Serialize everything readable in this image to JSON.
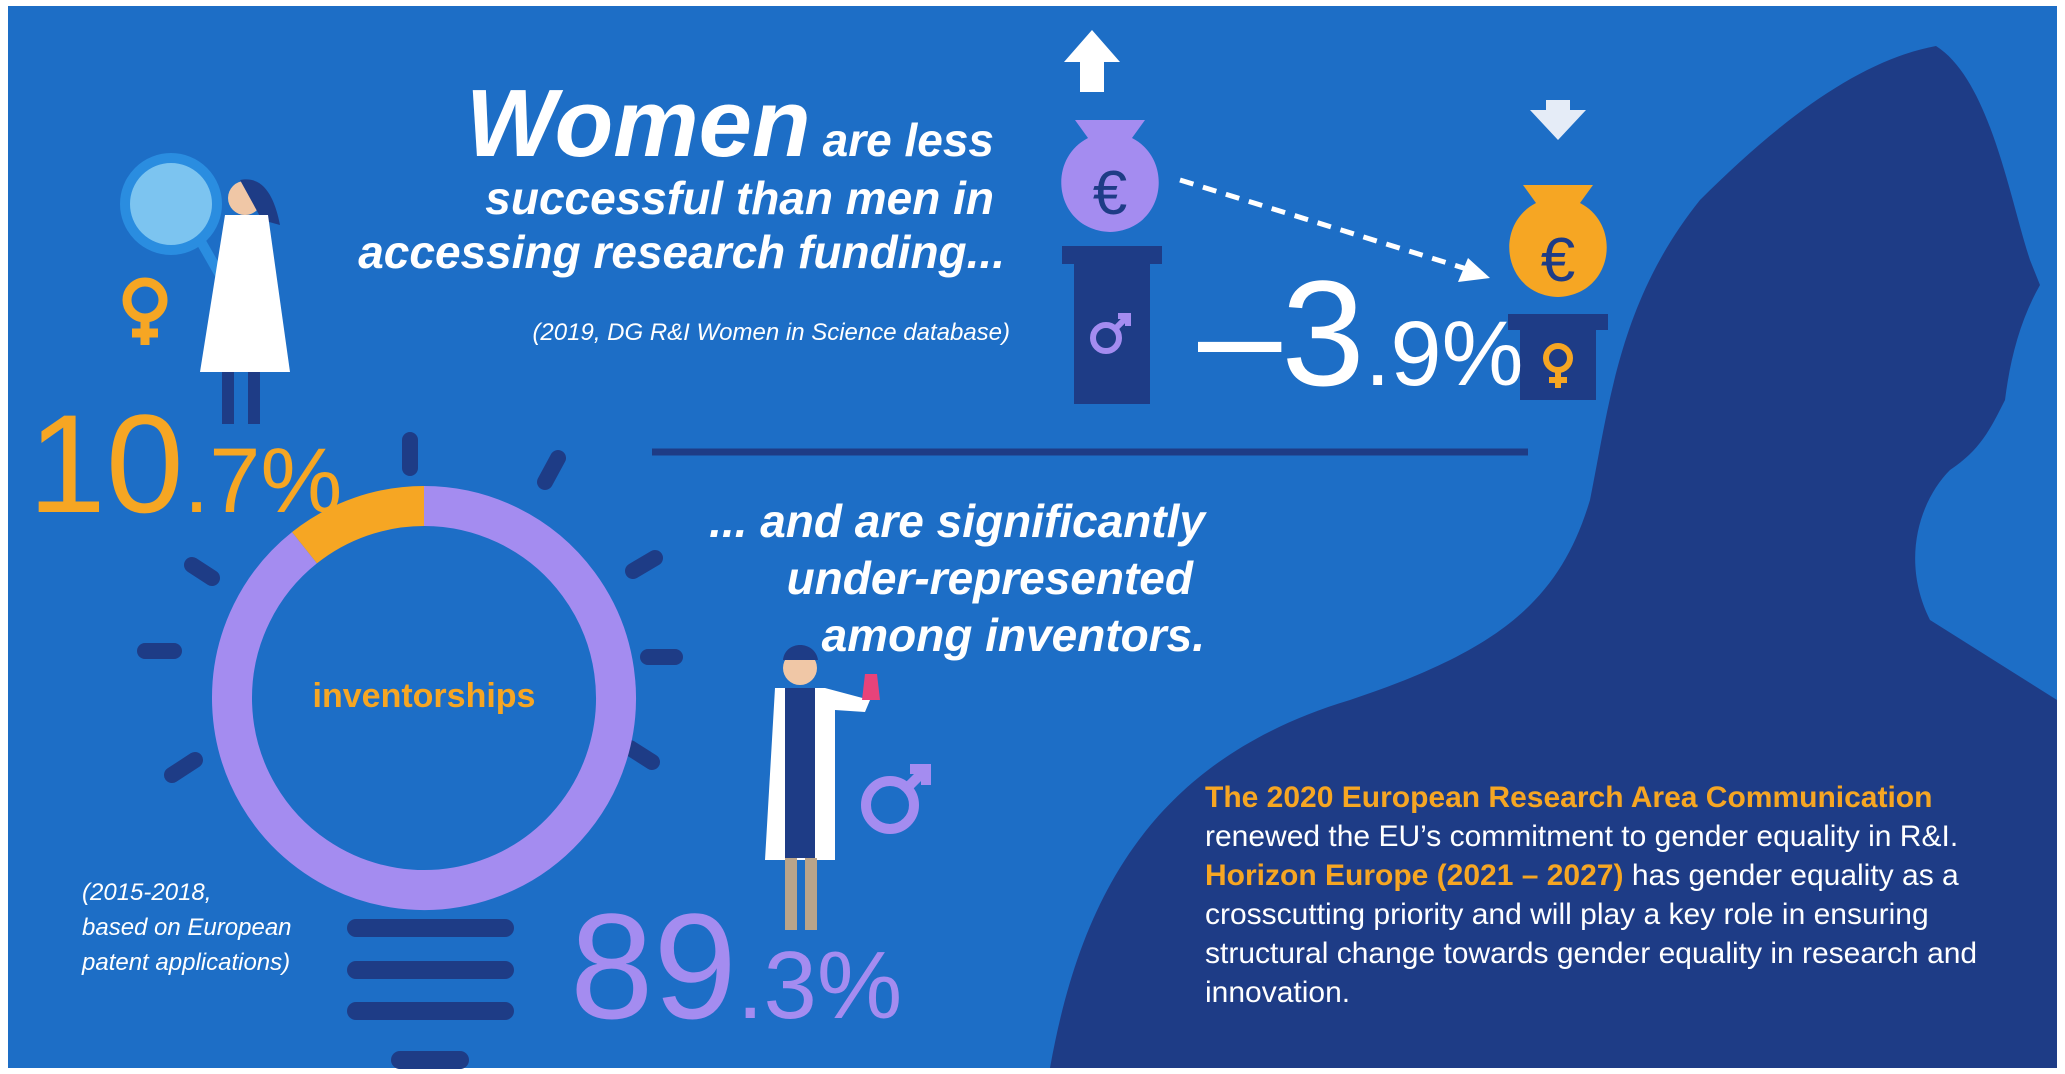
{
  "headline": {
    "emphasis": "Women",
    "rest": "are less",
    "line2": "successful than men in",
    "line3": "accessing research funding..."
  },
  "funding_source": "(2019, DG R&I Women in Science database)",
  "funding_gap": {
    "value": -3.9,
    "label": "–3.9%"
  },
  "subhead": [
    "... and are significantly",
    "under-represented",
    "among inventors."
  ],
  "donut": {
    "center_label": "inventorships",
    "segments": [
      {
        "value": 10.7,
        "label": "10.7%",
        "color": "#f6a623"
      },
      {
        "value": 89.3,
        "label": "89.3%",
        "color": "#a48cf0"
      }
    ]
  },
  "inventor_source": [
    "(2015-2018,",
    "based on European",
    "patent applications)"
  ],
  "policy_text": [
    {
      "text": "The 2020 European Research Area Communication",
      "highlight": true
    },
    {
      "text": " renewed the EU’s commitment to gender equality in R&I. ",
      "highlight": false
    },
    {
      "text": "Horizon Europe (2021 – 2027)",
      "highlight": true
    },
    {
      "text": " has gender equality as a crosscutting priority and will play a key role in ensuring structural change towards gender equality in research and innovation.",
      "highlight": false
    }
  ]
}
